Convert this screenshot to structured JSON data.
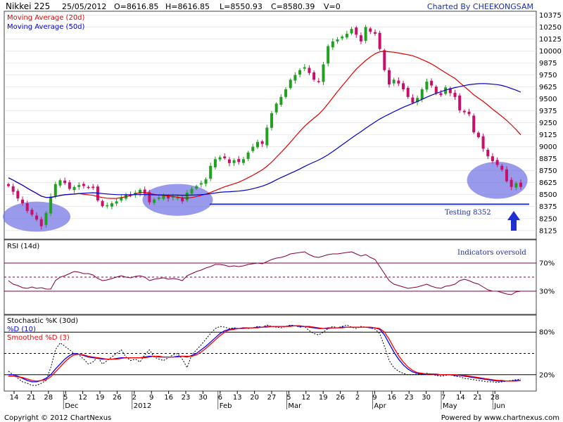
{
  "header": {
    "symbol": "Nikkei 225",
    "date": "25/05/2012",
    "open": "O=8616.85",
    "high": "H=8616.85",
    "low": "L=8550.93",
    "close": "C=8580.39",
    "volume": "V=0",
    "credit": "Charted By CHEEKONGSAM"
  },
  "footer": {
    "copyright": "Copyright © 2012 ChartNexus",
    "powered": "Powered by www.chartnexus.com"
  },
  "chart_data": [
    {
      "type": "candlestick",
      "legend": [
        {
          "name": "Moving Average (20d)",
          "color": "#e00000"
        },
        {
          "name": "Moving Average (50d)",
          "color": "#0000cc"
        }
      ],
      "ylim": [
        8050,
        10400
      ],
      "y_ticks": [
        "10375",
        "10250",
        "10125",
        "10000",
        "9875",
        "9750",
        "9625",
        "9500",
        "9375",
        "9250",
        "9125",
        "9000",
        "8875",
        "8750",
        "8625",
        "8500",
        "8375",
        "8250",
        "8125"
      ],
      "closes": [
        8590,
        8530,
        8460,
        8410,
        8330,
        8290,
        8240,
        8170,
        8310,
        8480,
        8610,
        8650,
        8620,
        8560,
        8580,
        8600,
        8590,
        8580,
        8570,
        8440,
        8380,
        8390,
        8410,
        8430,
        8470,
        8500,
        8490,
        8520,
        8550,
        8510,
        8420,
        8450,
        8470,
        8490,
        8460,
        8480,
        8470,
        8430,
        8520,
        8560,
        8590,
        8620,
        8660,
        8800,
        8870,
        8890,
        8880,
        8830,
        8860,
        8840,
        8870,
        8940,
        9000,
        9050,
        9030,
        9200,
        9350,
        9450,
        9520,
        9600,
        9700,
        9750,
        9800,
        9830,
        9770,
        9700,
        9680,
        9860,
        10050,
        10100,
        10120,
        10150,
        10180,
        10230,
        10170,
        10100,
        10250,
        10200,
        10180,
        10020,
        9800,
        9650,
        9700,
        9660,
        9600,
        9520,
        9460,
        9510,
        9600,
        9680,
        9640,
        9560,
        9540,
        9620,
        9560,
        9520,
        9380,
        9360,
        9340,
        9150,
        9100,
        8980,
        8900,
        8850,
        8810,
        8760,
        8640,
        8580,
        8620,
        8580
      ],
      "moving_average_20d": {
        "name": "Moving Average (20d)",
        "color": "#e00000"
      },
      "moving_average_50d": {
        "name": "Moving Average (50d)",
        "color": "#0000cc"
      },
      "support_line": 8400,
      "annotation": "Testing 8352",
      "highlight_color": "#6f6fe6"
    },
    {
      "type": "line",
      "title": "RSI (14d)",
      "ylim": [
        0,
        100
      ],
      "levels": [
        {
          "label": "70%",
          "value": 70
        },
        {
          "label": "30%",
          "value": 30
        }
      ],
      "mid_level": 50,
      "values": [
        45,
        40,
        38,
        35,
        34,
        36,
        34,
        35,
        33,
        33,
        45,
        50,
        52,
        55,
        58,
        57,
        55,
        55,
        53,
        48,
        45,
        46,
        48,
        50,
        52,
        50,
        49,
        51,
        52,
        50,
        45,
        47,
        48,
        49,
        47,
        48,
        47,
        45,
        52,
        55,
        58,
        60,
        63,
        65,
        68,
        68,
        67,
        65,
        66,
        65,
        66,
        68,
        69,
        70,
        69,
        72,
        75,
        77,
        78,
        80,
        83,
        84,
        85,
        86,
        82,
        79,
        78,
        80,
        82,
        83,
        83,
        84,
        85,
        86,
        83,
        80,
        82,
        78,
        75,
        65,
        55,
        45,
        40,
        38,
        36,
        34,
        35,
        36,
        38,
        40,
        37,
        35,
        34,
        37,
        38,
        40,
        45,
        47,
        45,
        42,
        40,
        36,
        32,
        30,
        30,
        28,
        26,
        25,
        29,
        30
      ],
      "annotation": "Indicators oversold",
      "color": "#800040"
    },
    {
      "type": "line",
      "title": "Stochastic %K (30d)",
      "ylim": [
        0,
        100
      ],
      "levels": [
        {
          "label": "80%",
          "value": 80
        },
        {
          "label": "20%",
          "value": 20
        }
      ],
      "mid_level": 50,
      "series": [
        {
          "name": "Stochastic %K (30d)",
          "color": "#000000",
          "values": [
            25,
            20,
            15,
            10,
            8,
            5,
            5,
            8,
            12,
            30,
            55,
            65,
            60,
            55,
            50,
            48,
            42,
            35,
            38,
            45,
            35,
            40,
            45,
            50,
            55,
            45,
            40,
            42,
            38,
            48,
            55,
            45,
            42,
            40,
            44,
            48,
            50,
            42,
            30,
            48,
            55,
            62,
            70,
            78,
            85,
            88,
            87,
            85,
            86,
            85,
            86,
            85,
            86,
            88,
            87,
            90,
            88,
            87,
            86,
            88,
            90,
            89,
            87,
            88,
            82,
            78,
            76,
            80,
            85,
            88,
            86,
            88,
            90,
            87,
            85,
            88,
            87,
            86,
            84,
            78,
            60,
            40,
            30,
            25,
            22,
            20,
            20,
            21,
            20,
            22,
            21,
            19,
            18,
            19,
            20,
            18,
            17,
            15,
            14,
            13,
            12,
            11,
            10,
            10,
            9,
            10,
            11,
            12,
            13,
            14
          ]
        },
        {
          "name": "%D (10)",
          "color": "#0000ff",
          "values": [
            20,
            20,
            18,
            15,
            12,
            10,
            10,
            12,
            15,
            20,
            28,
            35,
            42,
            47,
            50,
            49,
            47,
            45,
            44,
            43,
            42,
            42,
            42,
            43,
            44,
            44,
            44,
            44,
            44,
            45,
            46,
            46,
            45,
            45,
            45,
            45,
            46,
            46,
            45,
            47,
            50,
            55,
            60,
            66,
            72,
            78,
            82,
            84,
            85,
            85,
            86,
            86,
            86,
            87,
            87,
            88,
            88,
            88,
            88,
            88,
            89,
            89,
            88,
            88,
            87,
            86,
            85,
            85,
            86,
            86,
            86,
            87,
            87,
            87,
            87,
            87,
            87,
            86,
            86,
            84,
            76,
            64,
            52,
            42,
            34,
            28,
            24,
            22,
            21,
            21,
            21,
            20,
            20,
            20,
            20,
            19,
            19,
            18,
            17,
            16,
            15,
            14,
            13,
            12,
            11,
            11,
            11,
            11,
            12,
            12
          ]
        },
        {
          "name": "Smoothed %D (3)",
          "color": "#ff0000",
          "values": [
            18,
            18,
            17,
            16,
            14,
            12,
            11,
            12,
            13,
            17,
            24,
            31,
            38,
            44,
            48,
            49,
            48,
            46,
            45,
            44,
            43,
            42,
            42,
            42,
            43,
            44,
            44,
            44,
            44,
            44,
            45,
            46,
            46,
            45,
            45,
            45,
            45,
            46,
            46,
            46,
            48,
            52,
            57,
            63,
            69,
            75,
            80,
            83,
            84,
            85,
            85,
            86,
            86,
            86,
            87,
            87,
            88,
            88,
            88,
            88,
            88,
            89,
            89,
            88,
            88,
            87,
            86,
            85,
            85,
            86,
            86,
            86,
            87,
            87,
            87,
            87,
            87,
            87,
            86,
            85,
            80,
            70,
            58,
            47,
            38,
            31,
            26,
            23,
            22,
            21,
            21,
            21,
            20,
            20,
            20,
            20,
            19,
            19,
            18,
            17,
            16,
            15,
            14,
            13,
            12,
            12,
            11,
            11,
            11,
            12
          ]
        }
      ]
    }
  ],
  "x_axis": {
    "day_ticks": [
      "14",
      "21",
      "28",
      "5",
      "12",
      "19",
      "26",
      "2",
      "9",
      "16",
      "23",
      "30",
      "6",
      "13",
      "20",
      "27",
      "5",
      "12",
      "19",
      "26",
      "2",
      "9",
      "16",
      "23",
      "30",
      "7",
      "14",
      "21",
      "28"
    ],
    "month_labels": [
      "Dec",
      "2012",
      "Feb",
      "Mar",
      "Apr",
      "May",
      "Jun"
    ]
  }
}
